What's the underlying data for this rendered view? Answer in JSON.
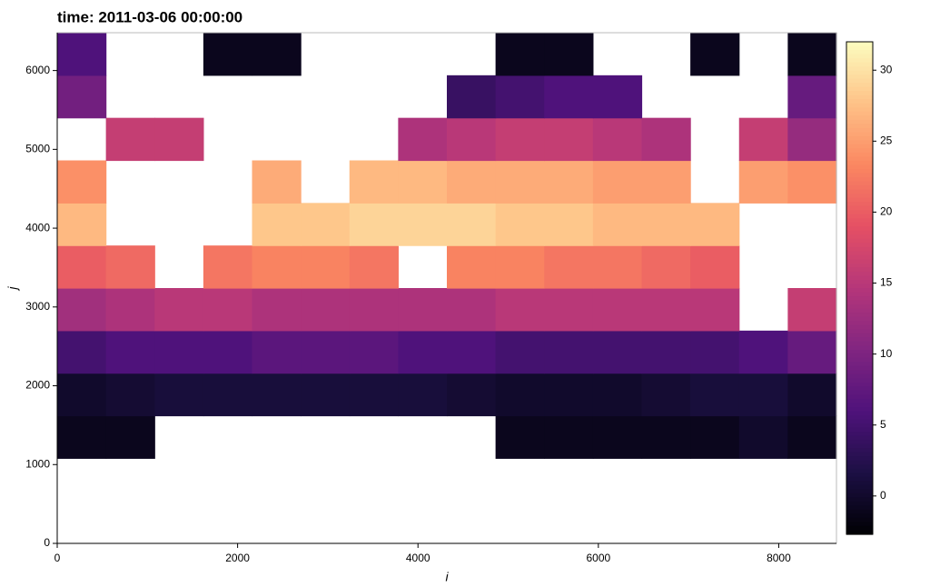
{
  "chart_data": {
    "type": "heatmap",
    "title": "time: 2011-03-06 00:00:00",
    "xlabel": "i",
    "ylabel": "j",
    "x": [
      270,
      810,
      1350,
      1890,
      2430,
      2970,
      3510,
      4050,
      4590,
      5130,
      5670,
      6210,
      6750,
      7290,
      7830,
      8370
    ],
    "y": [
      270,
      810,
      1350,
      1890,
      2430,
      2970,
      3510,
      4050,
      4590,
      5130,
      5670,
      6210
    ],
    "values": [
      [
        null,
        null,
        null,
        null,
        null,
        null,
        null,
        null,
        null,
        null,
        null,
        null,
        null,
        null,
        null,
        null
      ],
      [
        null,
        null,
        null,
        null,
        null,
        null,
        null,
        null,
        null,
        null,
        null,
        null,
        null,
        null,
        null,
        null
      ],
      [
        -1,
        -1,
        null,
        null,
        null,
        null,
        null,
        null,
        null,
        -1,
        -1,
        -1,
        -1,
        -1,
        0,
        -1
      ],
      [
        0,
        0.5,
        1,
        1,
        1,
        1,
        1,
        1,
        0.5,
        0,
        0,
        0,
        0.5,
        1,
        1,
        0
      ],
      [
        5,
        6,
        6,
        6,
        7,
        7,
        7,
        6,
        6,
        5,
        5,
        5,
        5,
        5,
        6,
        8
      ],
      [
        13,
        14,
        15,
        15,
        14,
        14,
        14,
        14,
        14,
        15,
        15,
        15,
        15,
        15,
        null,
        16
      ],
      [
        20,
        21,
        null,
        22,
        23,
        23,
        22,
        null,
        23,
        23,
        22,
        22,
        21,
        20,
        null,
        null
      ],
      [
        27,
        null,
        null,
        null,
        28,
        28,
        29,
        29,
        29,
        28,
        28,
        27,
        27,
        27,
        null,
        null
      ],
      [
        24,
        null,
        null,
        null,
        26,
        null,
        27,
        27,
        26,
        26,
        26,
        25,
        25,
        null,
        25,
        24
      ],
      [
        null,
        16,
        16,
        null,
        null,
        null,
        null,
        14,
        15,
        16,
        16,
        15,
        14,
        null,
        16,
        12
      ],
      [
        9,
        null,
        null,
        null,
        null,
        null,
        null,
        null,
        4,
        5,
        6,
        6,
        null,
        null,
        null,
        8
      ],
      [
        6,
        null,
        null,
        -1,
        -1,
        null,
        null,
        null,
        null,
        -1,
        -1,
        null,
        null,
        -1,
        null,
        -1
      ]
    ],
    "xlim": [
      0,
      8640
    ],
    "ylim": [
      0,
      6480
    ],
    "xticks": [
      0,
      2000,
      4000,
      6000,
      8000
    ],
    "yticks": [
      0,
      1000,
      2000,
      3000,
      4000,
      5000,
      6000
    ],
    "colormap": "magma",
    "clim": [
      -2.7,
      32
    ],
    "cticks": [
      0,
      5,
      10,
      15,
      20,
      25,
      30
    ]
  }
}
